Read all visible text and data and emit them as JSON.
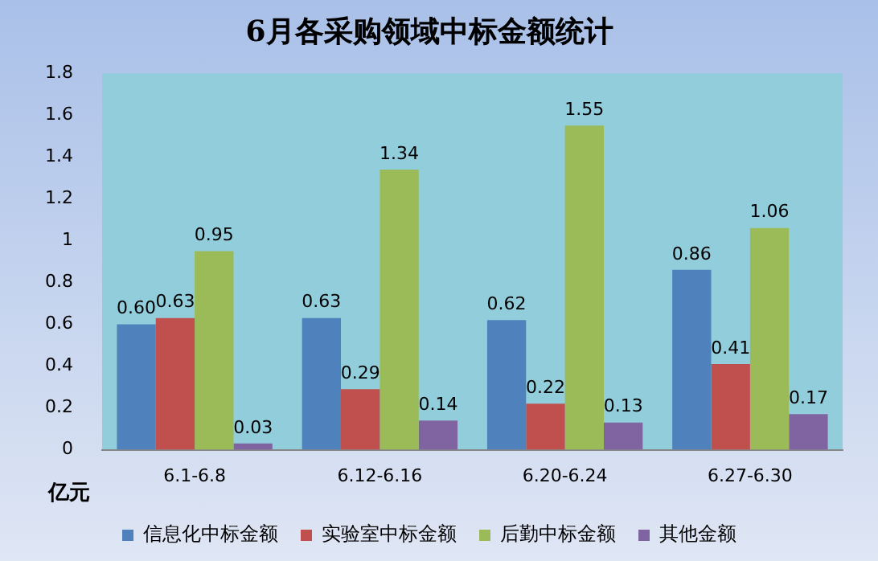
{
  "chart_data": {
    "type": "bar",
    "title": "6月各采购领域中标金额统计",
    "ylabel": "亿元",
    "categories": [
      "6.1-6.8",
      "6.12-6.16",
      "6.20-6.24",
      "6.27-6.30"
    ],
    "series": [
      {
        "name": "信息化中标金额",
        "color": "#4f81bd",
        "values": [
          0.6,
          0.63,
          0.62,
          0.86
        ],
        "value_labels": [
          "0.60",
          "0.63",
          "0.62",
          "0.86"
        ]
      },
      {
        "name": "实验室中标金额",
        "color": "#c0504d",
        "values": [
          0.63,
          0.29,
          0.22,
          0.41
        ],
        "value_labels": [
          "0.63",
          "0.29",
          "0.22",
          "0.41"
        ]
      },
      {
        "name": "后勤中标金额",
        "color": "#9bbb59",
        "values": [
          0.95,
          1.34,
          1.55,
          1.06
        ],
        "value_labels": [
          "0.95",
          "1.34",
          "1.55",
          "1.06"
        ]
      },
      {
        "name": "其他金额",
        "color": "#8064a2",
        "values": [
          0.03,
          0.14,
          0.13,
          0.17
        ],
        "value_labels": [
          "0.03",
          "0.14",
          "0.13",
          "0.17"
        ]
      }
    ],
    "ylim": [
      0,
      1.8
    ],
    "yticks": [
      0,
      0.2,
      0.4,
      0.6,
      0.8,
      1,
      1.2,
      1.4,
      1.6,
      1.8
    ],
    "grid": false,
    "legend": "bottom"
  }
}
